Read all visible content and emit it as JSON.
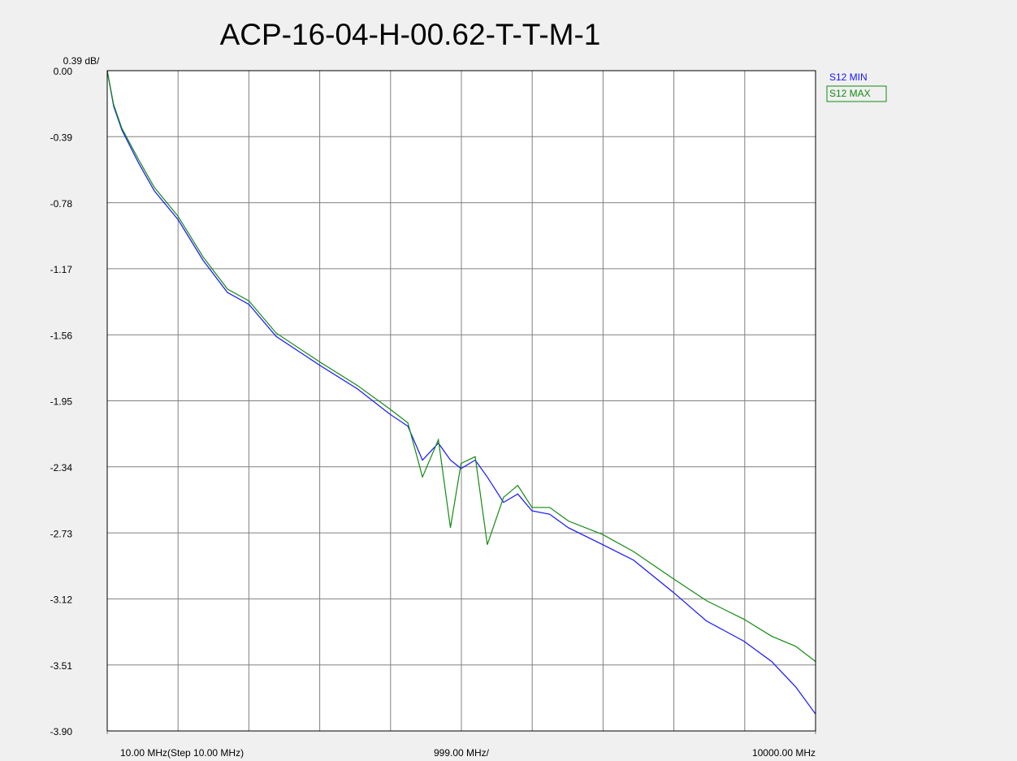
{
  "chart_data": {
    "type": "line",
    "title": "ACP-16-04-H-00.62-T-T-M-1",
    "y_scale_label": "0.39 dB/",
    "x_div_label": "999.00 MHz/",
    "x": [
      10,
      100,
      216,
      445,
      674,
      1009,
      1362,
      1706,
      2008,
      2393,
      3007,
      3540,
      4000,
      4250,
      4456,
      4681,
      4850,
      5000,
      5200,
      5370,
      5600,
      5800,
      6000,
      6250,
      6515,
      7000,
      7430,
      7990,
      8460,
      8990,
      9380,
      9720,
      10000
    ],
    "series": [
      {
        "name": "S12 MIN",
        "color": "#1414ff",
        "values": [
          0,
          -0.21,
          -0.35,
          -0.54,
          -0.71,
          -0.88,
          -1.12,
          -1.31,
          -1.38,
          -1.57,
          -1.74,
          -1.88,
          -2.03,
          -2.1,
          -2.3,
          -2.2,
          -2.3,
          -2.35,
          -2.3,
          -2.4,
          -2.55,
          -2.5,
          -2.6,
          -2.62,
          -2.7,
          -2.8,
          -2.89,
          -3.08,
          -3.25,
          -3.37,
          -3.49,
          -3.64,
          -3.8
        ]
      },
      {
        "name": "S12 MAX",
        "color": "#138a13",
        "values": [
          0,
          -0.2,
          -0.34,
          -0.52,
          -0.69,
          -0.86,
          -1.1,
          -1.29,
          -1.36,
          -1.55,
          -1.72,
          -1.86,
          -2.0,
          -2.08,
          -2.4,
          -2.18,
          -2.7,
          -2.32,
          -2.28,
          -2.8,
          -2.52,
          -2.45,
          -2.58,
          -2.58,
          -2.66,
          -2.74,
          -2.84,
          -3.0,
          -3.13,
          -3.24,
          -3.34,
          -3.4,
          -3.49
        ]
      }
    ],
    "xlim": [
      10,
      10000
    ],
    "xticks": [
      {
        "value": 10,
        "label": "10.00 MHz(Step 10.00 MHz)"
      },
      {
        "value": 10000,
        "label": "10000.00 MHz"
      }
    ],
    "xgrid": [
      1009,
      2008,
      3007,
      4006,
      5005,
      6004,
      7003,
      8002,
      9001
    ],
    "ylim": [
      -3.9,
      0
    ],
    "yticks": [
      {
        "value": 0,
        "label": "0.00"
      },
      -0.39,
      -0.78,
      -1.17,
      -1.56,
      -1.95,
      -2.34,
      -2.73,
      -3.12,
      -3.51,
      {
        "value": -3.9,
        "label": "-3.90"
      }
    ],
    "grid": true,
    "legend": "top-right"
  }
}
